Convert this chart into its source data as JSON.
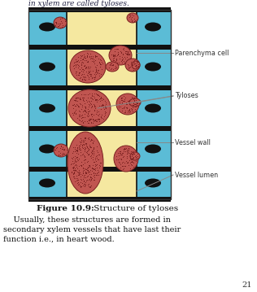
{
  "title_bold": "Figure 10.9:",
  "title_normal": " Structure of tyloses",
  "caption_line1": "    Usually, these structures are formed in",
  "caption_line2": "secondary xylem vessels that have last their",
  "caption_line3": "function i.e., in heart wood.",
  "page_number": "21",
  "bg_color": "#ffffff",
  "vessel_lumen_color": "#f5e8a0",
  "vessel_wall_color": "#5bbcd6",
  "tyloses_color": "#c05550",
  "annotation_color": "#888888",
  "label_parenchyma": "Parenchyma cell",
  "label_tyloses": "Tyloses",
  "label_vessel_wall": "Vessel wall",
  "label_vessel_lumen": "Vessel lumen",
  "top_text": "in xylem are called tyloses."
}
